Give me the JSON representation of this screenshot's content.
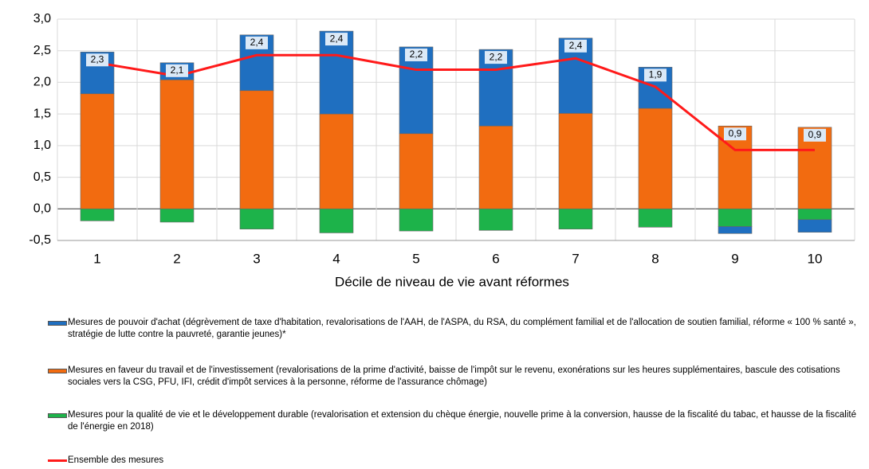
{
  "chart_data": {
    "type": "bar",
    "x_label": "Décile de niveau de vie avant réformes",
    "categories": [
      "1",
      "2",
      "3",
      "4",
      "5",
      "6",
      "7",
      "8",
      "9",
      "10"
    ],
    "series": [
      {
        "name": "Mesures de pouvoir d'achat (dégrèvement de taxe d'habitation, revalorisations de l'AAH, de l'ASPA, du RSA, du complément familial et de l'allocation de soutien familial, réforme « 100 % santé », stratégie de lutte contre la pauvreté, garantie jeunes)*",
        "color": "#1f6fc0",
        "values": [
          0.66,
          0.27,
          0.88,
          1.31,
          1.37,
          1.21,
          1.19,
          0.65,
          -0.11,
          -0.2
        ]
      },
      {
        "name": "Mesures en faveur du travail et de l'investissement (revalorisations de la prime d'activité, baisse de l'impôt sur le revenu, exonérations sur les heures supplémentaires, bascule des cotisations sociales vers la CSG, PFU, IFI, crédit d'impôt services à la personne, réforme de l'assurance chômage)",
        "color": "#f26b10",
        "values": [
          1.82,
          2.04,
          1.87,
          1.5,
          1.19,
          1.31,
          1.51,
          1.59,
          1.31,
          1.29
        ]
      },
      {
        "name": "Mesures pour la qualité de vie et le développement durable (revalorisation et extension du chèque énergie, nouvelle prime à la conversion, hausse de la fiscalité du tabac, et hausse de la fiscalité de l'énergie en 2018)",
        "color": "#1db34a",
        "values": [
          -0.19,
          -0.21,
          -0.32,
          -0.38,
          -0.35,
          -0.34,
          -0.32,
          -0.29,
          -0.28,
          -0.17
        ]
      },
      {
        "name": "Ensemble des mesures",
        "type": "line",
        "color": "#ff1a1a",
        "values": [
          2.31,
          2.1,
          2.43,
          2.43,
          2.2,
          2.2,
          2.38,
          1.93,
          0.93,
          0.93
        ],
        "value_labels": [
          "2,3",
          "2,1",
          "2,4",
          "2,4",
          "2,2",
          "2,2",
          "2,4",
          "1,9",
          "0,9",
          "0,9"
        ]
      }
    ],
    "ylim": [
      -0.5,
      3.0
    ],
    "yticks": [
      {
        "value": -0.5,
        "label": "-0,5"
      },
      {
        "value": 0,
        "label": "0,0"
      },
      {
        "value": 0.5,
        "label": "0,5"
      },
      {
        "value": 1,
        "label": "1,0"
      },
      {
        "value": 1.5,
        "label": "1,5"
      },
      {
        "value": 2,
        "label": "2,0"
      },
      {
        "value": 2.5,
        "label": "2,5"
      },
      {
        "value": 3,
        "label": "3,0"
      }
    ],
    "grid": true
  }
}
